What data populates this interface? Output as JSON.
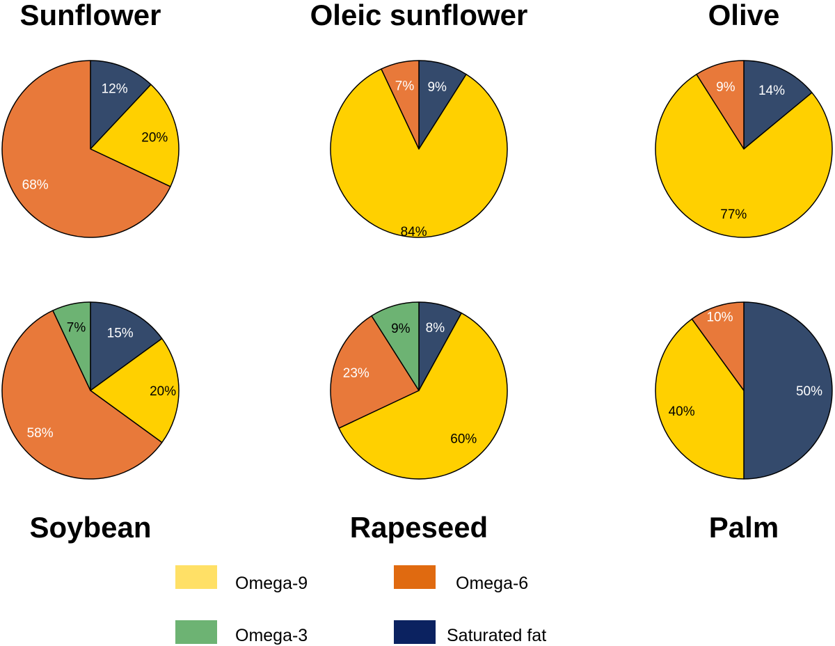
{
  "colors": {
    "omega9_slice": "#FFD000",
    "omega6_slice": "#E8793A",
    "omega3_slice": "#6DB373",
    "saturated_slice": "#344A6C",
    "omega9_legend": "#FFE066",
    "omega6_legend": "#E06A10",
    "omega3_legend": "#6DB373",
    "saturated_legend": "#0B2260",
    "outline": "#000000",
    "label_light": "#ffffff",
    "label_dark": "#000000"
  },
  "legend": [
    {
      "key": "omega9",
      "label": "Omega-9"
    },
    {
      "key": "omega6",
      "label": "Omega-6"
    },
    {
      "key": "omega3",
      "label": "Omega-3"
    },
    {
      "key": "saturated",
      "label": "Saturated fat"
    }
  ],
  "chart_data": [
    {
      "type": "pie",
      "title": "Sunflower",
      "slices": [
        {
          "category": "saturated",
          "value": 12,
          "label": "12%"
        },
        {
          "category": "omega9",
          "value": 20,
          "label": "20%"
        },
        {
          "category": "omega6",
          "value": 68,
          "label": "68%"
        }
      ]
    },
    {
      "type": "pie",
      "title": "Oleic sunflower",
      "slices": [
        {
          "category": "saturated",
          "value": 9,
          "label": "9%"
        },
        {
          "category": "omega9",
          "value": 84,
          "label": "84%"
        },
        {
          "category": "omega6",
          "value": 7,
          "label": "7%"
        }
      ]
    },
    {
      "type": "pie",
      "title": "Olive",
      "slices": [
        {
          "category": "saturated",
          "value": 14,
          "label": "14%"
        },
        {
          "category": "omega9",
          "value": 77,
          "label": "77%"
        },
        {
          "category": "omega6",
          "value": 9,
          "label": "9%"
        }
      ]
    },
    {
      "type": "pie",
      "title": "Soybean",
      "slices": [
        {
          "category": "saturated",
          "value": 15,
          "label": "15%"
        },
        {
          "category": "omega9",
          "value": 20,
          "label": "20%"
        },
        {
          "category": "omega6",
          "value": 58,
          "label": "58%"
        },
        {
          "category": "omega3",
          "value": 7,
          "label": "7%"
        }
      ]
    },
    {
      "type": "pie",
      "title": "Rapeseed",
      "slices": [
        {
          "category": "saturated",
          "value": 8,
          "label": "8%"
        },
        {
          "category": "omega9",
          "value": 60,
          "label": "60%"
        },
        {
          "category": "omega6",
          "value": 23,
          "label": "23%"
        },
        {
          "category": "omega3",
          "value": 9,
          "label": "9%"
        }
      ]
    },
    {
      "type": "pie",
      "title": "Palm",
      "slices": [
        {
          "category": "saturated",
          "value": 50,
          "label": "50%"
        },
        {
          "category": "omega9",
          "value": 40,
          "label": "40%"
        },
        {
          "category": "omega6",
          "value": 10,
          "label": "10%"
        }
      ]
    }
  ]
}
